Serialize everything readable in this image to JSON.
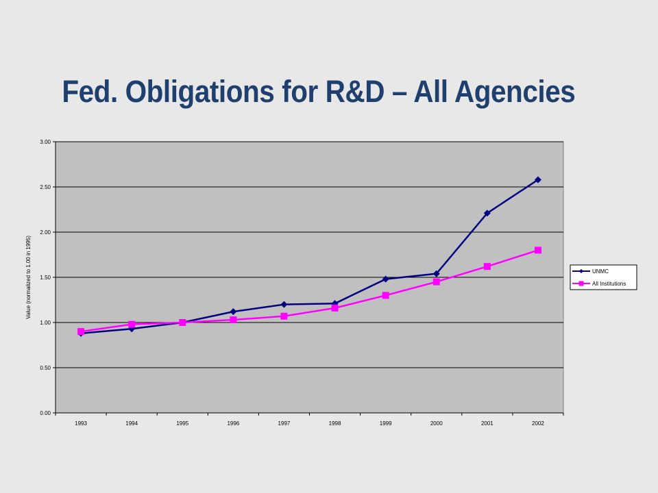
{
  "slide": {
    "title": "Fed. Obligations for R&D – All Agencies"
  },
  "colors": {
    "background": "#e8e8e8",
    "plot_area": "#c0c0c0",
    "title": "#1f3f6e",
    "unmc": "#000080",
    "all_institutions": "#ff00ff"
  },
  "chart_data": {
    "type": "line",
    "title": "",
    "xlabel": "",
    "ylabel": "Value (normalized to 1.00 in 1995)",
    "categories": [
      "1993",
      "1994",
      "1995",
      "1996",
      "1997",
      "1998",
      "1999",
      "2000",
      "2001",
      "2002"
    ],
    "ylim": [
      0,
      3
    ],
    "yticks": [
      "0.00",
      "0.50",
      "1.00",
      "1.50",
      "2.00",
      "2.50",
      "3.00"
    ],
    "grid": true,
    "legend_position": "right",
    "series": [
      {
        "name": "UNMC",
        "marker": "diamond",
        "color": "#000080",
        "values": [
          0.88,
          0.93,
          1.0,
          1.12,
          1.2,
          1.21,
          1.48,
          1.54,
          2.21,
          2.58
        ]
      },
      {
        "name": "All Institutions",
        "marker": "square",
        "color": "#ff00ff",
        "values": [
          0.9,
          0.98,
          1.0,
          1.03,
          1.07,
          1.16,
          1.3,
          1.45,
          1.62,
          1.8
        ]
      }
    ]
  }
}
